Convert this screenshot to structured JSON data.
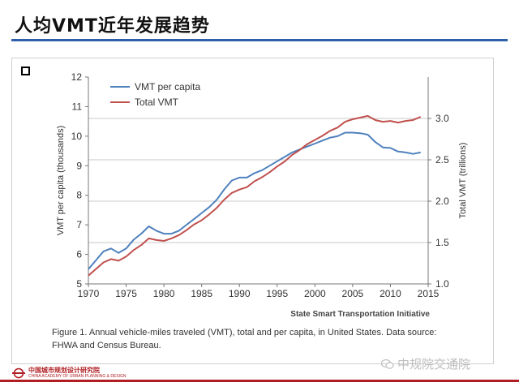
{
  "slide": {
    "title": "人均VMT近年发展趋势"
  },
  "organization": {
    "name": "中国城市规划设计研究院",
    "subtitle": "CHINA ACADEMY OF URBAN PLANNING & DESIGN"
  },
  "watermark": {
    "text": "中规院交通院",
    "icon": "wechat-icon"
  },
  "figure": {
    "caption_line1": "Figure 1. Annual vehicle-miles traveled (VMT), total and per capita, in United States. Data source:",
    "caption_line2": "FHWA and Census Bureau.",
    "source_note": "State Smart Transportation Initiative"
  },
  "chart_data": {
    "type": "line",
    "xlabel": "",
    "ylabel_left": "VMT per capita (thousands)",
    "ylabel_right": "Total VMT (trillions)",
    "xlim": [
      1970,
      2015
    ],
    "ylim_left": [
      5,
      12
    ],
    "ylim_right": [
      1.0,
      3.5
    ],
    "x_ticks": [
      "1970",
      "1975",
      "1980",
      "1985",
      "1990",
      "1995",
      "2000",
      "2005",
      "2010",
      "2015"
    ],
    "y_left_ticks": [
      "5",
      "6",
      "7",
      "8",
      "9",
      "10",
      "11",
      "12"
    ],
    "y_right_ticks": [
      "1.0",
      "1.5",
      "2.0",
      "2.5",
      "3.0"
    ],
    "grid": "horizontal",
    "legend_position": "top-left",
    "colors": {
      "per_capita": "#4f81bd",
      "total": "#c0504d"
    },
    "series": [
      {
        "name": "VMT per capita",
        "axis": "left",
        "x": [
          1970,
          1971,
          1972,
          1973,
          1974,
          1975,
          1976,
          1977,
          1978,
          1979,
          1980,
          1981,
          1982,
          1983,
          1984,
          1985,
          1986,
          1987,
          1988,
          1989,
          1990,
          1991,
          1992,
          1993,
          1994,
          1995,
          1996,
          1997,
          1998,
          1999,
          2000,
          2001,
          2002,
          2003,
          2004,
          2005,
          2006,
          2007,
          2008,
          2009,
          2010,
          2011,
          2012,
          2013,
          2014
        ],
        "values": [
          5.5,
          5.8,
          6.1,
          6.2,
          6.05,
          6.2,
          6.5,
          6.7,
          6.95,
          6.8,
          6.7,
          6.7,
          6.8,
          7.0,
          7.2,
          7.4,
          7.6,
          7.85,
          8.2,
          8.5,
          8.6,
          8.6,
          8.75,
          8.85,
          9.0,
          9.15,
          9.3,
          9.45,
          9.55,
          9.65,
          9.75,
          9.85,
          9.95,
          10.0,
          10.12,
          10.12,
          10.1,
          10.05,
          9.8,
          9.62,
          9.6,
          9.48,
          9.45,
          9.4,
          9.45
        ]
      },
      {
        "name": "Total VMT",
        "axis": "right",
        "x": [
          1970,
          1971,
          1972,
          1973,
          1974,
          1975,
          1976,
          1977,
          1978,
          1979,
          1980,
          1981,
          1982,
          1983,
          1984,
          1985,
          1986,
          1987,
          1988,
          1989,
          1990,
          1991,
          1992,
          1993,
          1994,
          1995,
          1996,
          1997,
          1998,
          1999,
          2000,
          2001,
          2002,
          2003,
          2004,
          2005,
          2006,
          2007,
          2008,
          2009,
          2010,
          2011,
          2012,
          2013,
          2014
        ],
        "values": [
          1.1,
          1.18,
          1.26,
          1.3,
          1.28,
          1.33,
          1.41,
          1.47,
          1.55,
          1.53,
          1.52,
          1.55,
          1.59,
          1.65,
          1.72,
          1.77,
          1.84,
          1.92,
          2.02,
          2.1,
          2.14,
          2.17,
          2.24,
          2.29,
          2.35,
          2.42,
          2.48,
          2.56,
          2.62,
          2.69,
          2.74,
          2.79,
          2.85,
          2.89,
          2.96,
          2.99,
          3.01,
          3.03,
          2.98,
          2.96,
          2.97,
          2.95,
          2.97,
          2.98,
          3.02
        ]
      }
    ]
  }
}
